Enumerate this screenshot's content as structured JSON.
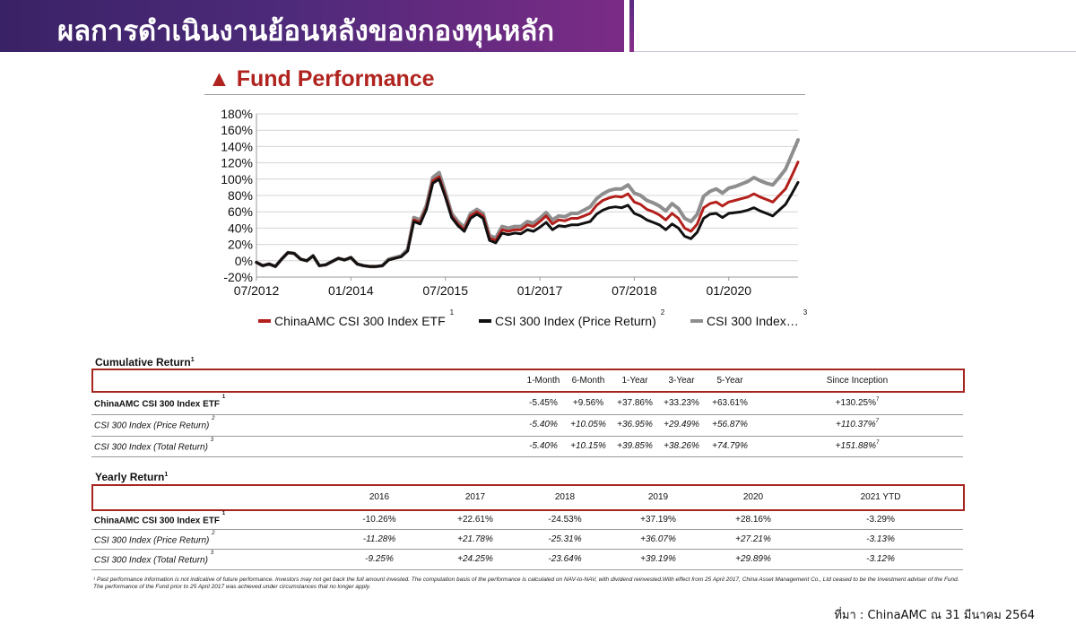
{
  "header": {
    "title": "ผลการดำเนินงานย้อนหลังของกองทุนหลัก"
  },
  "section_title": "▲ Fund Performance",
  "chart_data": {
    "type": "line",
    "ylim": [
      -20,
      180
    ],
    "yticks": [
      -20,
      0,
      20,
      40,
      60,
      80,
      100,
      120,
      140,
      160,
      180
    ],
    "ytick_labels": [
      "-20%",
      "0%",
      "20%",
      "40%",
      "60%",
      "80%",
      "100%",
      "120%",
      "140%",
      "160%",
      "180%"
    ],
    "xlim": [
      2012.5,
      2021.1
    ],
    "xticks": [
      2012.5,
      2014.0,
      2015.5,
      2017.0,
      2018.5,
      2020.0
    ],
    "xtick_labels": [
      "07/2012",
      "01/2014",
      "07/2015",
      "01/2017",
      "07/2018",
      "01/2020"
    ],
    "x": [
      2012.5,
      2012.6,
      2012.7,
      2012.8,
      2012.9,
      2013.0,
      2013.1,
      2013.2,
      2013.3,
      2013.4,
      2013.5,
      2013.6,
      2013.7,
      2013.8,
      2013.9,
      2014.0,
      2014.1,
      2014.2,
      2014.3,
      2014.4,
      2014.5,
      2014.6,
      2014.7,
      2014.8,
      2014.9,
      2015.0,
      2015.1,
      2015.2,
      2015.3,
      2015.4,
      2015.5,
      2015.6,
      2015.7,
      2015.8,
      2015.9,
      2016.0,
      2016.1,
      2016.2,
      2016.3,
      2016.4,
      2016.5,
      2016.6,
      2016.7,
      2016.8,
      2016.9,
      2017.0,
      2017.1,
      2017.2,
      2017.3,
      2017.4,
      2017.5,
      2017.6,
      2017.7,
      2017.8,
      2017.9,
      2018.0,
      2018.1,
      2018.2,
      2018.3,
      2018.4,
      2018.5,
      2018.6,
      2018.7,
      2018.8,
      2018.9,
      2019.0,
      2019.1,
      2019.2,
      2019.3,
      2019.4,
      2019.5,
      2019.6,
      2019.7,
      2019.8,
      2019.9,
      2020.0,
      2020.1,
      2020.2,
      2020.3,
      2020.4,
      2020.5,
      2020.6,
      2020.7,
      2020.8,
      2020.9,
      2021.0,
      2021.1
    ],
    "series": [
      {
        "name": "ChinaAMC CSI 300 Index ETF",
        "color": "#b3201c",
        "values": [
          -2,
          -6,
          -4,
          -7,
          2,
          10,
          9,
          2,
          0,
          6,
          -6,
          -5,
          -1,
          3,
          1,
          4,
          -4,
          -6,
          -7,
          -7,
          -6,
          1,
          3,
          5,
          12,
          50,
          47,
          65,
          98,
          103,
          80,
          55,
          45,
          38,
          55,
          60,
          55,
          28,
          25,
          38,
          36,
          38,
          38,
          44,
          42,
          48,
          55,
          45,
          50,
          49,
          52,
          52,
          55,
          58,
          68,
          74,
          77,
          79,
          78,
          82,
          72,
          69,
          63,
          60,
          56,
          50,
          58,
          52,
          40,
          36,
          45,
          65,
          70,
          72,
          67,
          72,
          74,
          76,
          78,
          82,
          78,
          75,
          72,
          80,
          88,
          104,
          121
        ]
      },
      {
        "name": "CSI 300 Index (Price Return)",
        "color": "#111111",
        "values": [
          -2,
          -6,
          -4,
          -7,
          2,
          10,
          9,
          2,
          0,
          6,
          -6,
          -5,
          -1,
          3,
          1,
          4,
          -4,
          -6,
          -7,
          -7,
          -6,
          1,
          3,
          5,
          12,
          48,
          45,
          63,
          95,
          100,
          78,
          53,
          43,
          36,
          52,
          57,
          52,
          25,
          22,
          34,
          32,
          34,
          33,
          38,
          36,
          41,
          47,
          38,
          43,
          42,
          44,
          44,
          46,
          48,
          57,
          62,
          65,
          66,
          65,
          68,
          58,
          55,
          50,
          47,
          44,
          38,
          45,
          40,
          30,
          27,
          35,
          52,
          57,
          58,
          53,
          58,
          59,
          60,
          62,
          65,
          61,
          58,
          55,
          62,
          69,
          82,
          96
        ]
      },
      {
        "name": "CSI 300 Index (Total Return)",
        "color": "#8e8e8e",
        "values": [
          -2,
          -6,
          -4,
          -7,
          2,
          10,
          9,
          2,
          0,
          6,
          -6,
          -5,
          -1,
          3,
          1,
          4,
          -4,
          -6,
          -7,
          -7,
          -6,
          2,
          4,
          6,
          14,
          53,
          50,
          68,
          102,
          108,
          84,
          58,
          48,
          41,
          58,
          63,
          58,
          31,
          28,
          42,
          40,
          42,
          42,
          48,
          46,
          52,
          59,
          50,
          55,
          54,
          58,
          58,
          62,
          66,
          76,
          82,
          86,
          88,
          88,
          93,
          83,
          80,
          74,
          71,
          67,
          61,
          70,
          64,
          52,
          48,
          57,
          79,
          85,
          88,
          83,
          89,
          91,
          94,
          97,
          102,
          98,
          95,
          93,
          102,
          112,
          130,
          148
        ]
      }
    ],
    "legend": {
      "position": "bottom",
      "entries": [
        {
          "label": "ChinaAMC CSI 300 Index ETF",
          "sup": "1"
        },
        {
          "label": "CSI 300 Index (Price Return)",
          "sup": "2"
        },
        {
          "label": "CSI 300 Index…",
          "sup": "3"
        }
      ]
    },
    "grid": true
  },
  "cumulative": {
    "title": "Cumulative Return",
    "title_sup": "1",
    "columns": [
      "1-Month",
      "6-Month",
      "1-Year",
      "3-Year",
      "5-Year",
      "Since Inception"
    ],
    "rows": [
      {
        "label": "ChinaAMC CSI 300 Index ETF",
        "sup": "1",
        "values": [
          "-5.45%",
          "+9.56%",
          "+37.86%",
          "+33.23%",
          "+63.61%",
          "+130.25%"
        ],
        "last_sup": "7"
      },
      {
        "label": "CSI 300 Index (Price Return)",
        "sup": "2",
        "values": [
          "-5.40%",
          "+10.05%",
          "+36.95%",
          "+29.49%",
          "+56.87%",
          "+110.37%"
        ],
        "last_sup": "7"
      },
      {
        "label": "CSI 300 Index (Total Return)",
        "sup": "3",
        "values": [
          "-5.40%",
          "+10.15%",
          "+39.85%",
          "+38.26%",
          "+74.79%",
          "+151.88%"
        ],
        "last_sup": "7"
      }
    ]
  },
  "yearly": {
    "title": "Yearly Return",
    "title_sup": "1",
    "columns": [
      "2016",
      "2017",
      "2018",
      "2019",
      "2020",
      "2021 YTD"
    ],
    "rows": [
      {
        "label": "ChinaAMC CSI 300 Index ETF",
        "sup": "1",
        "values": [
          "-10.26%",
          "+22.61%",
          "-24.53%",
          "+37.19%",
          "+28.16%",
          "-3.29%"
        ]
      },
      {
        "label": "CSI 300 Index (Price Return)",
        "sup": "2",
        "values": [
          "-11.28%",
          "+21.78%",
          "-25.31%",
          "+36.07%",
          "+27.21%",
          "-3.13%"
        ]
      },
      {
        "label": "CSI 300 Index (Total Return)",
        "sup": "3",
        "values": [
          "-9.25%",
          "+24.25%",
          "-23.64%",
          "+39.19%",
          "+29.89%",
          "-3.12%"
        ]
      }
    ]
  },
  "footnote": "¹ Past performance information is not indicative of future performance. Investors may not get back the full amount invested. The computation basis of the performance is calculated on NAV-to-NAV, with dividend reinvested.With effect from 25 April 2017, China Asset Management Co., Ltd ceased to be the Investment adviser of the Fund. The performance of the Fund prior to 25 April 2017 was achieved under circumstances that no longer apply.",
  "source": "ที่มา : ChinaAMC ณ 31 มีนาคม 2564"
}
